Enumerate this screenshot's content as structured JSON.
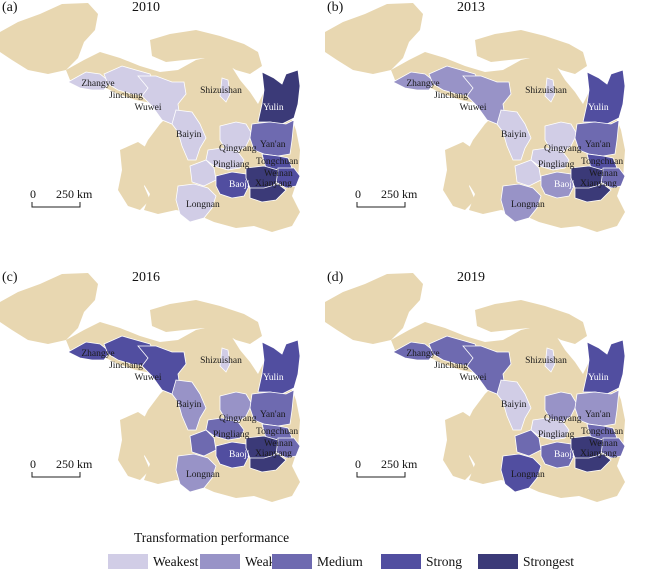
{
  "colors": {
    "background_region": "#e8d7b1",
    "weakest": "#d1cde6",
    "weak": "#9893c7",
    "medium": "#6e6ab0",
    "strong": "#514ea0",
    "strongest": "#3b3a78"
  },
  "scale_bar": {
    "zero": "0",
    "distance": "250 km"
  },
  "panels": [
    {
      "label": "(a)",
      "year": "2010",
      "levels": {
        "zhangye": "weakest",
        "jinchang": "weakest",
        "wuwei": "weakest",
        "baiyin": "weakest",
        "longnan": "weakest",
        "shizuishan": "weakest",
        "qingyang": "weakest",
        "pingliang": "weakest",
        "tianshui": "weakest",
        "yulin": "strongest",
        "yanan": "medium",
        "tongchuan": "strong",
        "weinan": "strong",
        "xianyang": "strongest",
        "baoji": "strong",
        "xian": "strongest"
      }
    },
    {
      "label": "(b)",
      "year": "2013",
      "levels": {
        "zhangye": "weak",
        "jinchang": "weak",
        "wuwei": "weak",
        "baiyin": "weakest",
        "longnan": "weak",
        "shizuishan": "weakest",
        "qingyang": "weakest",
        "pingliang": "weakest",
        "tianshui": "weakest",
        "yulin": "strong",
        "yanan": "medium",
        "tongchuan": "strong",
        "weinan": "medium",
        "xianyang": "strongest",
        "baoji": "weak",
        "xian": "strongest"
      }
    },
    {
      "label": "(c)",
      "year": "2016",
      "levels": {
        "zhangye": "strong",
        "jinchang": "strong",
        "wuwei": "strong",
        "baiyin": "weak",
        "longnan": "weak",
        "shizuishan": "weakest",
        "qingyang": "weak",
        "pingliang": "medium",
        "tianshui": "medium",
        "yulin": "strong",
        "yanan": "medium",
        "tongchuan": "medium",
        "weinan": "medium",
        "xianyang": "strongest",
        "baoji": "strong",
        "xian": "strongest"
      }
    },
    {
      "label": "(d)",
      "year": "2019",
      "levels": {
        "zhangye": "medium",
        "jinchang": "medium",
        "wuwei": "medium",
        "baiyin": "weakest",
        "longnan": "strong",
        "shizuishan": "weakest",
        "qingyang": "weak",
        "pingliang": "weakest",
        "tianshui": "medium",
        "yulin": "strong",
        "yanan": "weak",
        "tongchuan": "medium",
        "weinan": "medium",
        "xianyang": "strongest",
        "baoji": "medium",
        "xian": "strongest"
      }
    }
  ],
  "place_names": {
    "zhangye": "Zhangye",
    "jinchang": "Jinchang",
    "wuwei": "Wuwei",
    "shizuishan": "Shizuishan",
    "baiyin": "Baiyin",
    "yulin": "Yulin",
    "yanan": "Yan'an",
    "qingyang": "Qingyang",
    "pingliang": "Pingliang",
    "tongchuan": "Tongchuan",
    "weinan": "Weinan",
    "baoji": "Baoji",
    "xianyang": "Xianyang",
    "longnan": "Longnan"
  },
  "legend": {
    "title": "Transformation performance",
    "items": [
      {
        "key": "weakest",
        "label": "Weakest"
      },
      {
        "key": "weak",
        "label": "Weak"
      },
      {
        "key": "medium",
        "label": "Medium"
      },
      {
        "key": "strong",
        "label": "Strong"
      },
      {
        "key": "strongest",
        "label": "Strongest"
      }
    ]
  }
}
